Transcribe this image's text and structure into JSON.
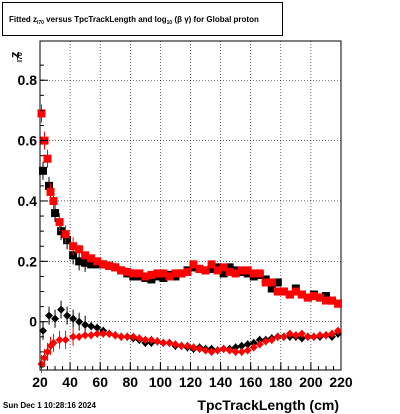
{
  "title": {
    "prefix": "Fitted  z",
    "sub1": "I70",
    "mid": " versus TpcTrackLength and log",
    "sub2": "10",
    "suffix": " (β  γ) for Global proton"
  },
  "ylabel": {
    "main": "z",
    "sub": "I70"
  },
  "xlabel": "TpcTrackLength (cm)",
  "timestamp": "Sun Dec  1 10:28:16 2024",
  "chart_data": {
    "type": "scatter",
    "x_range": [
      20,
      220
    ],
    "y_range": [
      -0.16,
      0.93
    ],
    "grid": true,
    "x_ticks": [
      20,
      40,
      60,
      80,
      100,
      120,
      140,
      160,
      180,
      200,
      220
    ],
    "x_tick_labels": [
      "20",
      "40",
      "60",
      "80",
      "100",
      "120",
      "140",
      "160",
      "180",
      "200",
      "220"
    ],
    "y_ticks": [
      0,
      0.2,
      0.4,
      0.6,
      0.8
    ],
    "y_tick_labels": [
      "0",
      "0.2",
      "0.4",
      "0.6",
      "0.8"
    ],
    "series": [
      {
        "color": "#000000",
        "marker": "square",
        "x": [
          22,
          26,
          30,
          34,
          38,
          42,
          46,
          50,
          54,
          58,
          62,
          66,
          70,
          74,
          78,
          82,
          86,
          90,
          94,
          98,
          102,
          106,
          110,
          114,
          118,
          122,
          126,
          130,
          134,
          138,
          142,
          146,
          150,
          154,
          158,
          162,
          166,
          170,
          174,
          178,
          182,
          186,
          190,
          194,
          198,
          202,
          206,
          210,
          214,
          218
        ],
        "y": [
          0.5,
          0.45,
          0.36,
          0.3,
          0.27,
          0.22,
          0.2,
          0.195,
          0.19,
          0.19,
          0.19,
          0.185,
          0.18,
          0.17,
          0.16,
          0.15,
          0.15,
          0.145,
          0.14,
          0.15,
          0.145,
          0.155,
          0.15,
          0.16,
          0.17,
          0.18,
          0.175,
          0.17,
          0.175,
          0.18,
          0.16,
          0.18,
          0.17,
          0.165,
          0.16,
          0.15,
          0.155,
          0.14,
          0.11,
          0.13,
          0.1,
          0.09,
          0.11,
          0.09,
          0.08,
          0.09,
          0.08,
          0.085,
          0.07,
          0.06
        ]
      },
      {
        "color": "#ff0000",
        "marker": "square",
        "x": [
          21,
          23,
          25,
          27,
          29,
          33,
          37,
          42,
          46,
          50,
          54,
          58,
          62,
          66,
          70,
          74,
          78,
          82,
          86,
          90,
          94,
          98,
          102,
          106,
          110,
          114,
          118,
          122,
          126,
          130,
          134,
          138,
          142,
          146,
          150,
          154,
          158,
          162,
          166,
          170,
          174,
          178,
          182,
          186,
          190,
          194,
          198,
          202,
          206,
          210,
          214,
          218
        ],
        "y": [
          0.69,
          0.6,
          0.54,
          0.43,
          0.4,
          0.33,
          0.29,
          0.25,
          0.24,
          0.22,
          0.21,
          0.2,
          0.19,
          0.185,
          0.18,
          0.17,
          0.165,
          0.16,
          0.16,
          0.15,
          0.155,
          0.16,
          0.16,
          0.15,
          0.16,
          0.16,
          0.165,
          0.19,
          0.175,
          0.17,
          0.19,
          0.17,
          0.18,
          0.165,
          0.16,
          0.17,
          0.17,
          0.16,
          0.16,
          0.13,
          0.13,
          0.1,
          0.1,
          0.09,
          0.1,
          0.09,
          0.08,
          0.085,
          0.08,
          0.07,
          0.07,
          0.06
        ]
      },
      {
        "color": "#000000",
        "marker": "diamond",
        "x": [
          22,
          26,
          30,
          34,
          38,
          42,
          46,
          50,
          54,
          58,
          62,
          66,
          70,
          74,
          78,
          82,
          86,
          90,
          94,
          98,
          102,
          106,
          110,
          114,
          118,
          122,
          126,
          130,
          134,
          138,
          142,
          146,
          150,
          154,
          158,
          162,
          166,
          170,
          174,
          178,
          182,
          186,
          190,
          194,
          198,
          202,
          206,
          210,
          214,
          218
        ],
        "y": [
          -0.03,
          0.02,
          0.01,
          0.04,
          0.02,
          0.01,
          0.0,
          -0.01,
          -0.015,
          -0.02,
          -0.03,
          -0.04,
          -0.045,
          -0.05,
          -0.05,
          -0.055,
          -0.06,
          -0.07,
          -0.07,
          -0.065,
          -0.07,
          -0.07,
          -0.08,
          -0.08,
          -0.085,
          -0.09,
          -0.085,
          -0.09,
          -0.09,
          -0.095,
          -0.09,
          -0.09,
          -0.085,
          -0.08,
          -0.075,
          -0.07,
          -0.06,
          -0.06,
          -0.055,
          -0.05,
          -0.05,
          -0.05,
          -0.05,
          -0.055,
          -0.05,
          -0.05,
          -0.05,
          -0.045,
          -0.05,
          -0.04
        ]
      },
      {
        "color": "#ff0000",
        "marker": "diamond",
        "x": [
          21,
          23,
          25,
          27,
          29,
          33,
          37,
          42,
          46,
          50,
          54,
          58,
          62,
          66,
          70,
          74,
          78,
          82,
          86,
          90,
          94,
          98,
          102,
          106,
          110,
          114,
          118,
          122,
          126,
          130,
          134,
          138,
          142,
          146,
          150,
          154,
          158,
          162,
          166,
          170,
          174,
          178,
          182,
          186,
          190,
          194,
          198,
          202,
          206,
          210,
          214,
          218
        ],
        "y": [
          -0.14,
          -0.12,
          -0.1,
          -0.08,
          -0.07,
          -0.06,
          -0.06,
          -0.05,
          -0.05,
          -0.045,
          -0.045,
          -0.04,
          -0.04,
          -0.04,
          -0.045,
          -0.05,
          -0.05,
          -0.05,
          -0.055,
          -0.06,
          -0.06,
          -0.065,
          -0.07,
          -0.07,
          -0.075,
          -0.08,
          -0.08,
          -0.085,
          -0.09,
          -0.095,
          -0.1,
          -0.095,
          -0.09,
          -0.095,
          -0.1,
          -0.1,
          -0.095,
          -0.085,
          -0.075,
          -0.065,
          -0.06,
          -0.05,
          -0.05,
          -0.04,
          -0.045,
          -0.04,
          -0.05,
          -0.05,
          -0.045,
          -0.045,
          -0.04,
          -0.03
        ]
      }
    ]
  }
}
